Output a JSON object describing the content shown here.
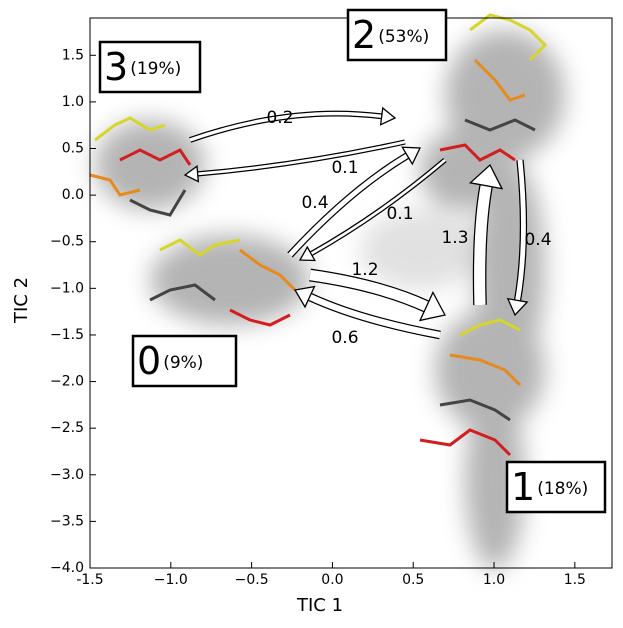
{
  "chart_data": {
    "type": "msm-density",
    "xlabel": "TIC 1",
    "ylabel": "TIC 2",
    "xlim": [
      -1.5,
      1.73
    ],
    "ylim": [
      -4.0,
      1.9
    ],
    "xticks": [
      -1.5,
      {
        "value": -1,
        "label": "−1.0"
      },
      {
        "value": -0.5,
        "label": "−0.5"
      },
      {
        "value": 0,
        "label": "0.0"
      },
      0.5,
      {
        "value": 1,
        "label": "1.0"
      },
      1.5
    ],
    "yticks": [
      1.5,
      {
        "value": 1,
        "label": "1.0"
      },
      0.5,
      {
        "value": 0,
        "label": "0.0"
      },
      {
        "value": -0.5,
        "label": "−0.5"
      },
      {
        "value": -1,
        "label": "−1.0"
      },
      {
        "value": -1.5,
        "label": "−1.5"
      },
      {
        "value": -2,
        "label": "−2.0"
      },
      {
        "value": -2.5,
        "label": "−2.5"
      },
      {
        "value": -3,
        "label": "−3.0"
      },
      {
        "value": -3.5,
        "label": "−3.5"
      },
      {
        "value": -4,
        "label": "−4.0"
      }
    ],
    "states": {
      "labels": [
        "3",
        "2",
        "0",
        "1"
      ],
      "values": [
        19,
        53,
        9,
        18
      ],
      "value_labels": [
        "(19%)",
        "(53%)",
        "(9%)",
        "(18%)"
      ]
    },
    "transitions": {
      "values": [
        0.2,
        0.1,
        0.4,
        0.1,
        1.2,
        0.6,
        1.3,
        0.4
      ]
    }
  }
}
